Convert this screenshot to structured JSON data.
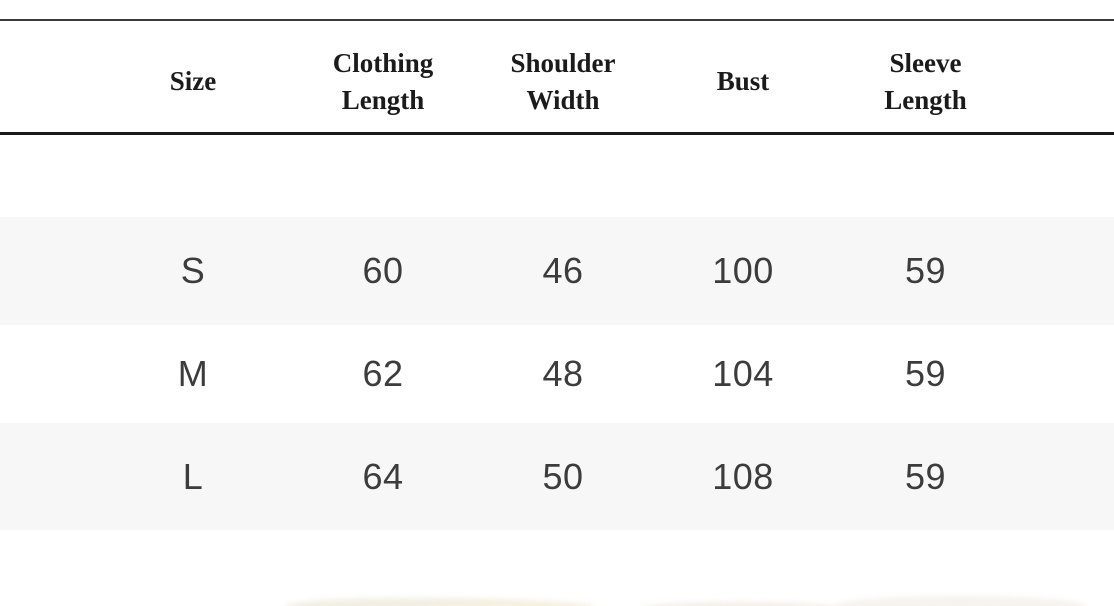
{
  "table": {
    "columns": [
      {
        "key": "size",
        "label": "Size"
      },
      {
        "key": "clothing_length",
        "label": "Clothing Length"
      },
      {
        "key": "shoulder_width",
        "label": "Shoulder Width"
      },
      {
        "key": "bust",
        "label": "Bust"
      },
      {
        "key": "sleeve_length",
        "label": "Sleeve Length"
      }
    ],
    "rows": [
      {
        "size": "S",
        "clothing_length": "60",
        "shoulder_width": "46",
        "bust": "100",
        "sleeve_length": "59"
      },
      {
        "size": "M",
        "clothing_length": "62",
        "shoulder_width": "48",
        "bust": "104",
        "sleeve_length": "59"
      },
      {
        "size": "L",
        "clothing_length": "64",
        "shoulder_width": "50",
        "bust": "108",
        "sleeve_length": "59"
      }
    ]
  },
  "colors": {
    "stripe_background": "#f7f7f7",
    "row_background": "#ffffff",
    "header_text": "#1b1b1b",
    "data_text": "#3c3c3c",
    "top_rule": "#3a3a3a",
    "header_rule": "#1a1a1a"
  }
}
